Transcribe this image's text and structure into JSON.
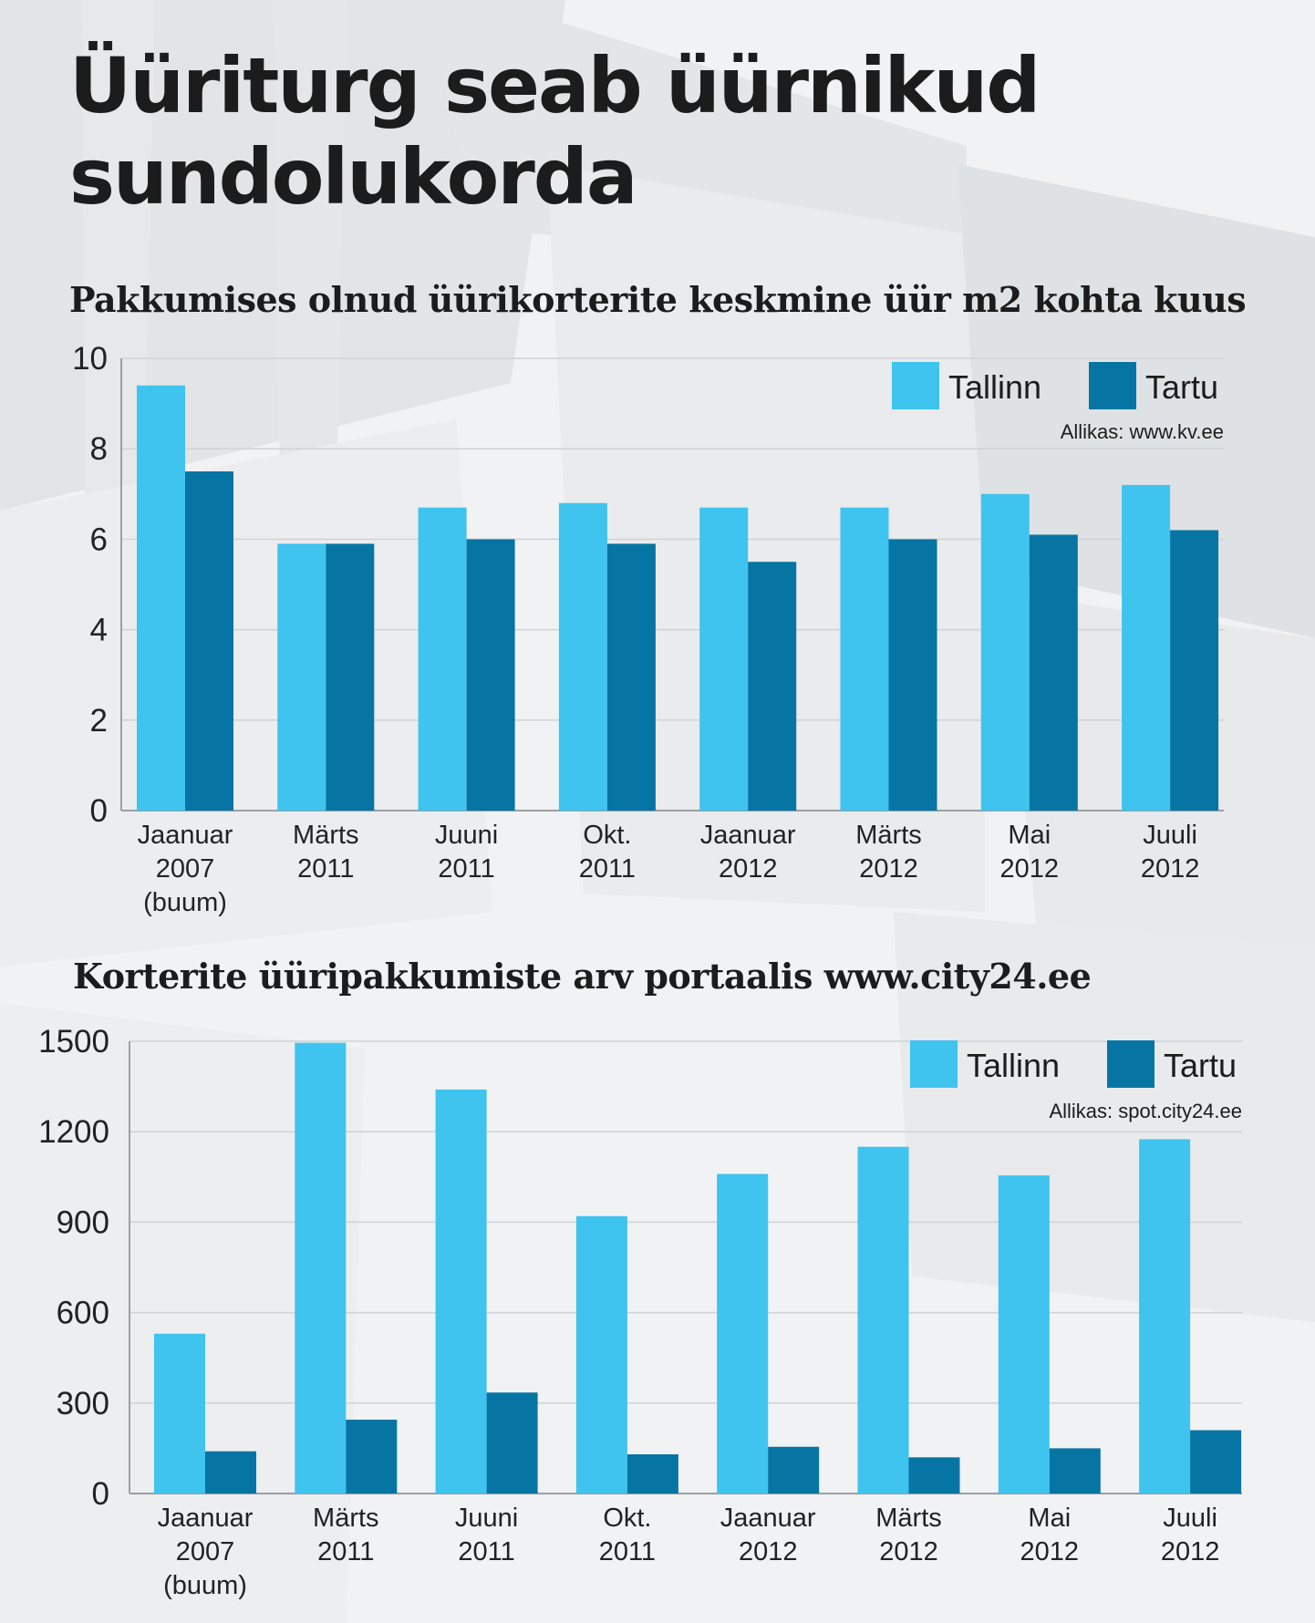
{
  "title_lines": [
    "Üüriturg seab üürnikud",
    "sundolukorda"
  ],
  "colors": {
    "tallinn": "#3fc3ef",
    "tartu": "#0675a3",
    "grid": "#cfd3d6",
    "axis": "#9aa0a4"
  },
  "chart_data": [
    {
      "type": "bar",
      "title": "Pakkumises olnud üürikorterite keskmine üür m2 kohta kuus",
      "categories": [
        "Jaanuar 2007 (buum)",
        "Märts 2011",
        "Juuni 2011",
        "Okt. 2011",
        "Jaanuar 2012",
        "Märts 2012",
        "Mai 2012",
        "Juuli 2012"
      ],
      "category_lines": [
        [
          "Jaanuar",
          "2007",
          "(buum)"
        ],
        [
          "Märts",
          "2011"
        ],
        [
          "Juuni",
          "2011"
        ],
        [
          "Okt.",
          "2011"
        ],
        [
          "Jaanuar",
          "2012"
        ],
        [
          "Märts",
          "2012"
        ],
        [
          "Mai",
          "2012"
        ],
        [
          "Juuli",
          "2012"
        ]
      ],
      "series": [
        {
          "name": "Tallinn",
          "values": [
            9.4,
            5.9,
            6.7,
            6.8,
            6.7,
            6.7,
            7.0,
            7.2
          ]
        },
        {
          "name": "Tartu",
          "values": [
            7.5,
            5.9,
            6.0,
            5.9,
            5.5,
            6.0,
            6.1,
            6.2
          ]
        }
      ],
      "ylim": [
        0,
        10
      ],
      "yticks": [
        "0",
        "2",
        "4",
        "6",
        "8",
        "10"
      ],
      "grid": true,
      "legend": "top-right",
      "source": "Allikas: www.kv.ee"
    },
    {
      "type": "bar",
      "title": "Korterite üüripakkumiste arv portaalis www.city24.ee",
      "categories": [
        "Jaanuar 2007 (buum)",
        "Märts 2011",
        "Juuni 2011",
        "Okt. 2011",
        "Jaanuar 2012",
        "Märts 2012",
        "Mai 2012",
        "Juuli 2012"
      ],
      "category_lines": [
        [
          "Jaanuar",
          "2007",
          "(buum)"
        ],
        [
          "Märts",
          "2011"
        ],
        [
          "Juuni",
          "2011"
        ],
        [
          "Okt.",
          "2011"
        ],
        [
          "Jaanuar",
          "2012"
        ],
        [
          "Märts",
          "2012"
        ],
        [
          "Mai",
          "2012"
        ],
        [
          "Juuli",
          "2012"
        ]
      ],
      "series": [
        {
          "name": "Tallinn",
          "values": [
            530,
            1495,
            1340,
            920,
            1060,
            1150,
            1055,
            1175
          ]
        },
        {
          "name": "Tartu",
          "values": [
            140,
            245,
            335,
            130,
            155,
            120,
            150,
            210
          ]
        }
      ],
      "ylim": [
        0,
        1500
      ],
      "yticks": [
        "0",
        "300",
        "600",
        "900",
        "1200",
        "1500"
      ],
      "grid": true,
      "legend": "top-right",
      "source": "Allikas: spot.city24.ee"
    }
  ]
}
